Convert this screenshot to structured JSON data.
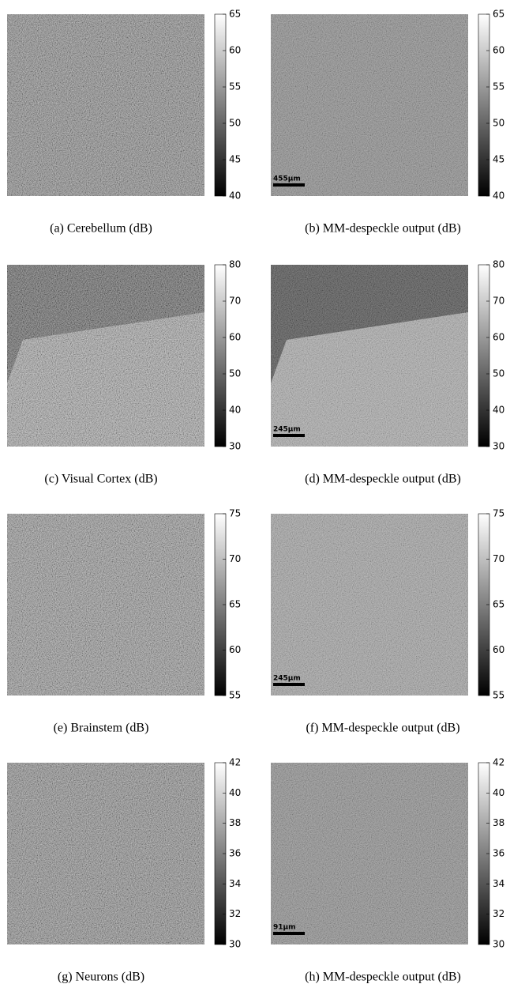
{
  "panels": [
    {
      "caption": "(a) Cerebellum (dB)",
      "colorbar": {
        "lim": [
          40,
          65
        ],
        "ticks": [
          40,
          45,
          50,
          55,
          60,
          65
        ]
      }
    },
    {
      "caption": "(b) MM-despeckle output (dB)",
      "colorbar": {
        "lim": [
          40,
          65
        ],
        "ticks": [
          40,
          45,
          50,
          55,
          60,
          65
        ]
      },
      "scalebar": "455μm"
    },
    {
      "caption": "(c) Visual Cortex (dB)",
      "colorbar": {
        "lim": [
          30,
          80
        ],
        "ticks": [
          30,
          40,
          50,
          60,
          70,
          80
        ]
      }
    },
    {
      "caption": "(d) MM-despeckle output (dB)",
      "colorbar": {
        "lim": [
          30,
          80
        ],
        "ticks": [
          30,
          40,
          50,
          60,
          70,
          80
        ]
      },
      "scalebar": "245μm"
    },
    {
      "caption": "(e) Brainstem (dB)",
      "colorbar": {
        "lim": [
          55,
          75
        ],
        "ticks": [
          55,
          60,
          65,
          70,
          75
        ]
      }
    },
    {
      "caption": "(f) MM-despeckle output (dB)",
      "colorbar": {
        "lim": [
          55,
          75
        ],
        "ticks": [
          55,
          60,
          65,
          70,
          75
        ]
      },
      "scalebar": "245μm"
    },
    {
      "caption": "(g) Neurons (dB)",
      "colorbar": {
        "lim": [
          30,
          42
        ],
        "ticks": [
          30,
          32,
          34,
          36,
          38,
          40,
          42
        ]
      }
    },
    {
      "caption": "(h) MM-despeckle output (dB)",
      "colorbar": {
        "lim": [
          30,
          42
        ],
        "ticks": [
          30,
          32,
          34,
          36,
          38,
          40,
          42
        ]
      },
      "scalebar": "91μm"
    }
  ]
}
